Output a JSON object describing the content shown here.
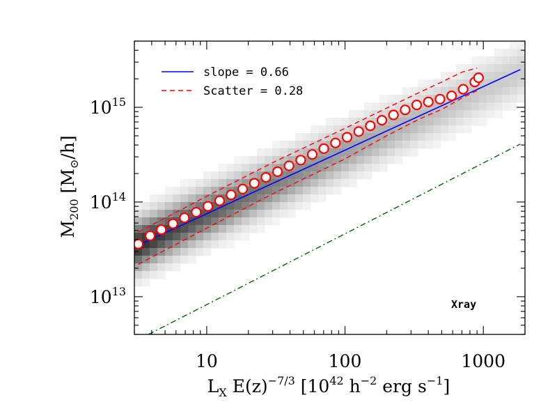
{
  "chart_data": {
    "type": "scatter",
    "xscale": "log",
    "yscale": "log",
    "xlim": [
      3,
      2000
    ],
    "ylim": [
      4000000000000.0,
      5000000000000000.0
    ],
    "x_ticks": [
      {
        "value": 10,
        "label": "10"
      },
      {
        "value": 100,
        "label": "100"
      },
      {
        "value": 1000,
        "label": "1000"
      }
    ],
    "y_ticks": [
      {
        "value": 10000000000000.0,
        "base": "10",
        "exp": "13"
      },
      {
        "value": 100000000000000.0,
        "base": "10",
        "exp": "14"
      },
      {
        "value": 1000000000000000.0,
        "base": "10",
        "exp": "15"
      }
    ],
    "xlabel": {
      "main": "L",
      "sub": "X",
      "mid": " E(z)",
      "sup": "−7/3",
      "unit_open": " [10",
      "unit_sup1": "42",
      "unit_mid": " h",
      "unit_sup2": "−2",
      "unit_mid2": " erg s",
      "unit_sup3": "−1",
      "unit_close": "]"
    },
    "ylabel": {
      "main": "M",
      "sub": "200",
      "unit": " [M",
      "unit_sub": "⊙",
      "unit_close": "/h]"
    },
    "legend": {
      "position": "top-left",
      "entries": [
        {
          "label": "slope = 0.66",
          "style": "solid",
          "color": "#0000ff"
        },
        {
          "label": "Scatter = 0.28",
          "style": "dashed",
          "color": "#ff0000"
        }
      ]
    },
    "annotation": "Xray",
    "series": [
      {
        "kind": "binned-median",
        "marker": "open-circle",
        "color": "#ff0000",
        "x": [
          3.2,
          3.9,
          4.7,
          5.7,
          6.9,
          8.4,
          10.2,
          12.4,
          15.0,
          18.2,
          22.1,
          26.8,
          32.5,
          39.4,
          47.8,
          58.0,
          70.3,
          85.3,
          103.5,
          125.6,
          152.3,
          184.8,
          224.2,
          272.0,
          330.0,
          400.3,
          485.7,
          589.2,
          714.8,
          867.2,
          923.0
        ],
        "y": [
          36000000000000.0,
          44000000000000.0,
          51000000000000.0,
          59000000000000.0,
          68000000000000.0,
          78000000000000.0,
          90000000000000.0,
          103000000000000.0,
          119000000000000.0,
          137000000000000.0,
          158000000000000.0,
          182000000000000.0,
          209000000000000.0,
          241000000000000.0,
          277000000000000.0,
          318000000000000.0,
          366000000000000.0,
          420000000000000.0,
          483000000000000.0,
          555000000000000.0,
          638000000000000.0,
          730000000000000.0,
          830000000000000.0,
          940000000000000.0,
          1060000000000000.0,
          1140000000000000.0,
          1220000000000000.0,
          1320000000000000.0,
          1550000000000000.0,
          1850000000000000.0,
          2050000000000000.0
        ]
      }
    ],
    "fit_line": {
      "slope": 0.66,
      "x": [
        3.2,
        1850
      ],
      "y": [
        35000000000000.0,
        2500000000000000.0
      ],
      "color": "#0000ff",
      "style": "solid"
    },
    "scatter_upper": {
      "color": "#ff0000",
      "style": "dashed",
      "x": [
        3.2,
        10,
        30,
        100,
        200,
        350,
        500,
        700,
        900
      ],
      "y": [
        48000000000000.0,
        115000000000000.0,
        260000000000000.0,
        600000000000000.0,
        980000000000000.0,
        1450000000000000.0,
        1850000000000000.0,
        2350000000000000.0,
        2600000000000000.0
      ]
    },
    "scatter_lower": {
      "color": "#ff0000",
      "style": "dashed",
      "x": [
        3.2,
        10,
        30,
        100,
        200,
        350,
        500,
        700,
        900
      ],
      "y": [
        22000000000000.0,
        53000000000000.0,
        122000000000000.0,
        285000000000000.0,
        500000000000000.0,
        760000000000000.0,
        950000000000000.0,
        1250000000000000.0,
        1500000000000000.0
      ]
    },
    "reference_line": {
      "color": "#006400",
      "style": "dash-dot",
      "x": [
        3.8,
        1850
      ],
      "y": [
        4000000000000.0,
        410000000000000.0
      ]
    },
    "background": "grayscale 2D density of clusters along the relation"
  }
}
